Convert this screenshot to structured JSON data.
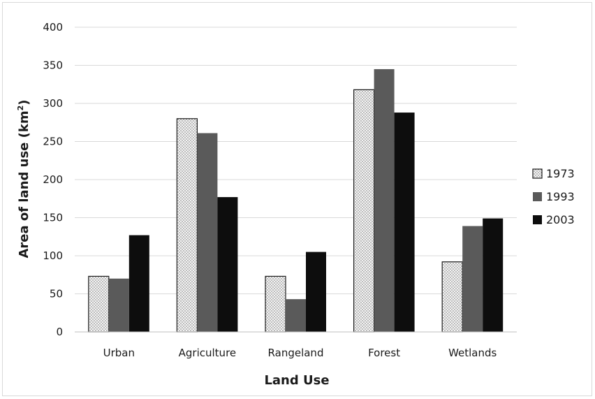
{
  "chart_data": {
    "type": "bar",
    "title": "",
    "xlabel": "Land Use",
    "ylabel_main": "Area of land use (km",
    "ylabel_sup": "2",
    "ylabel_close": ")",
    "categories": [
      "Urban",
      "Agriculture",
      "Rangeland",
      "Forest",
      "Wetlands"
    ],
    "series": [
      {
        "name": "1973",
        "values": [
          73,
          280,
          73,
          318,
          92
        ],
        "color": "#f2f2f2",
        "pattern": "dotted"
      },
      {
        "name": "1993",
        "values": [
          70,
          261,
          43,
          345,
          139
        ],
        "color": "#5a5a5a",
        "pattern": "solid"
      },
      {
        "name": "2003",
        "values": [
          127,
          177,
          105,
          288,
          149
        ],
        "color": "#0d0d0d",
        "pattern": "solid"
      }
    ],
    "ylim": [
      0,
      400
    ],
    "yticks": [
      0,
      50,
      100,
      150,
      200,
      250,
      300,
      350,
      400
    ],
    "grid": true,
    "legend_position": "right"
  }
}
